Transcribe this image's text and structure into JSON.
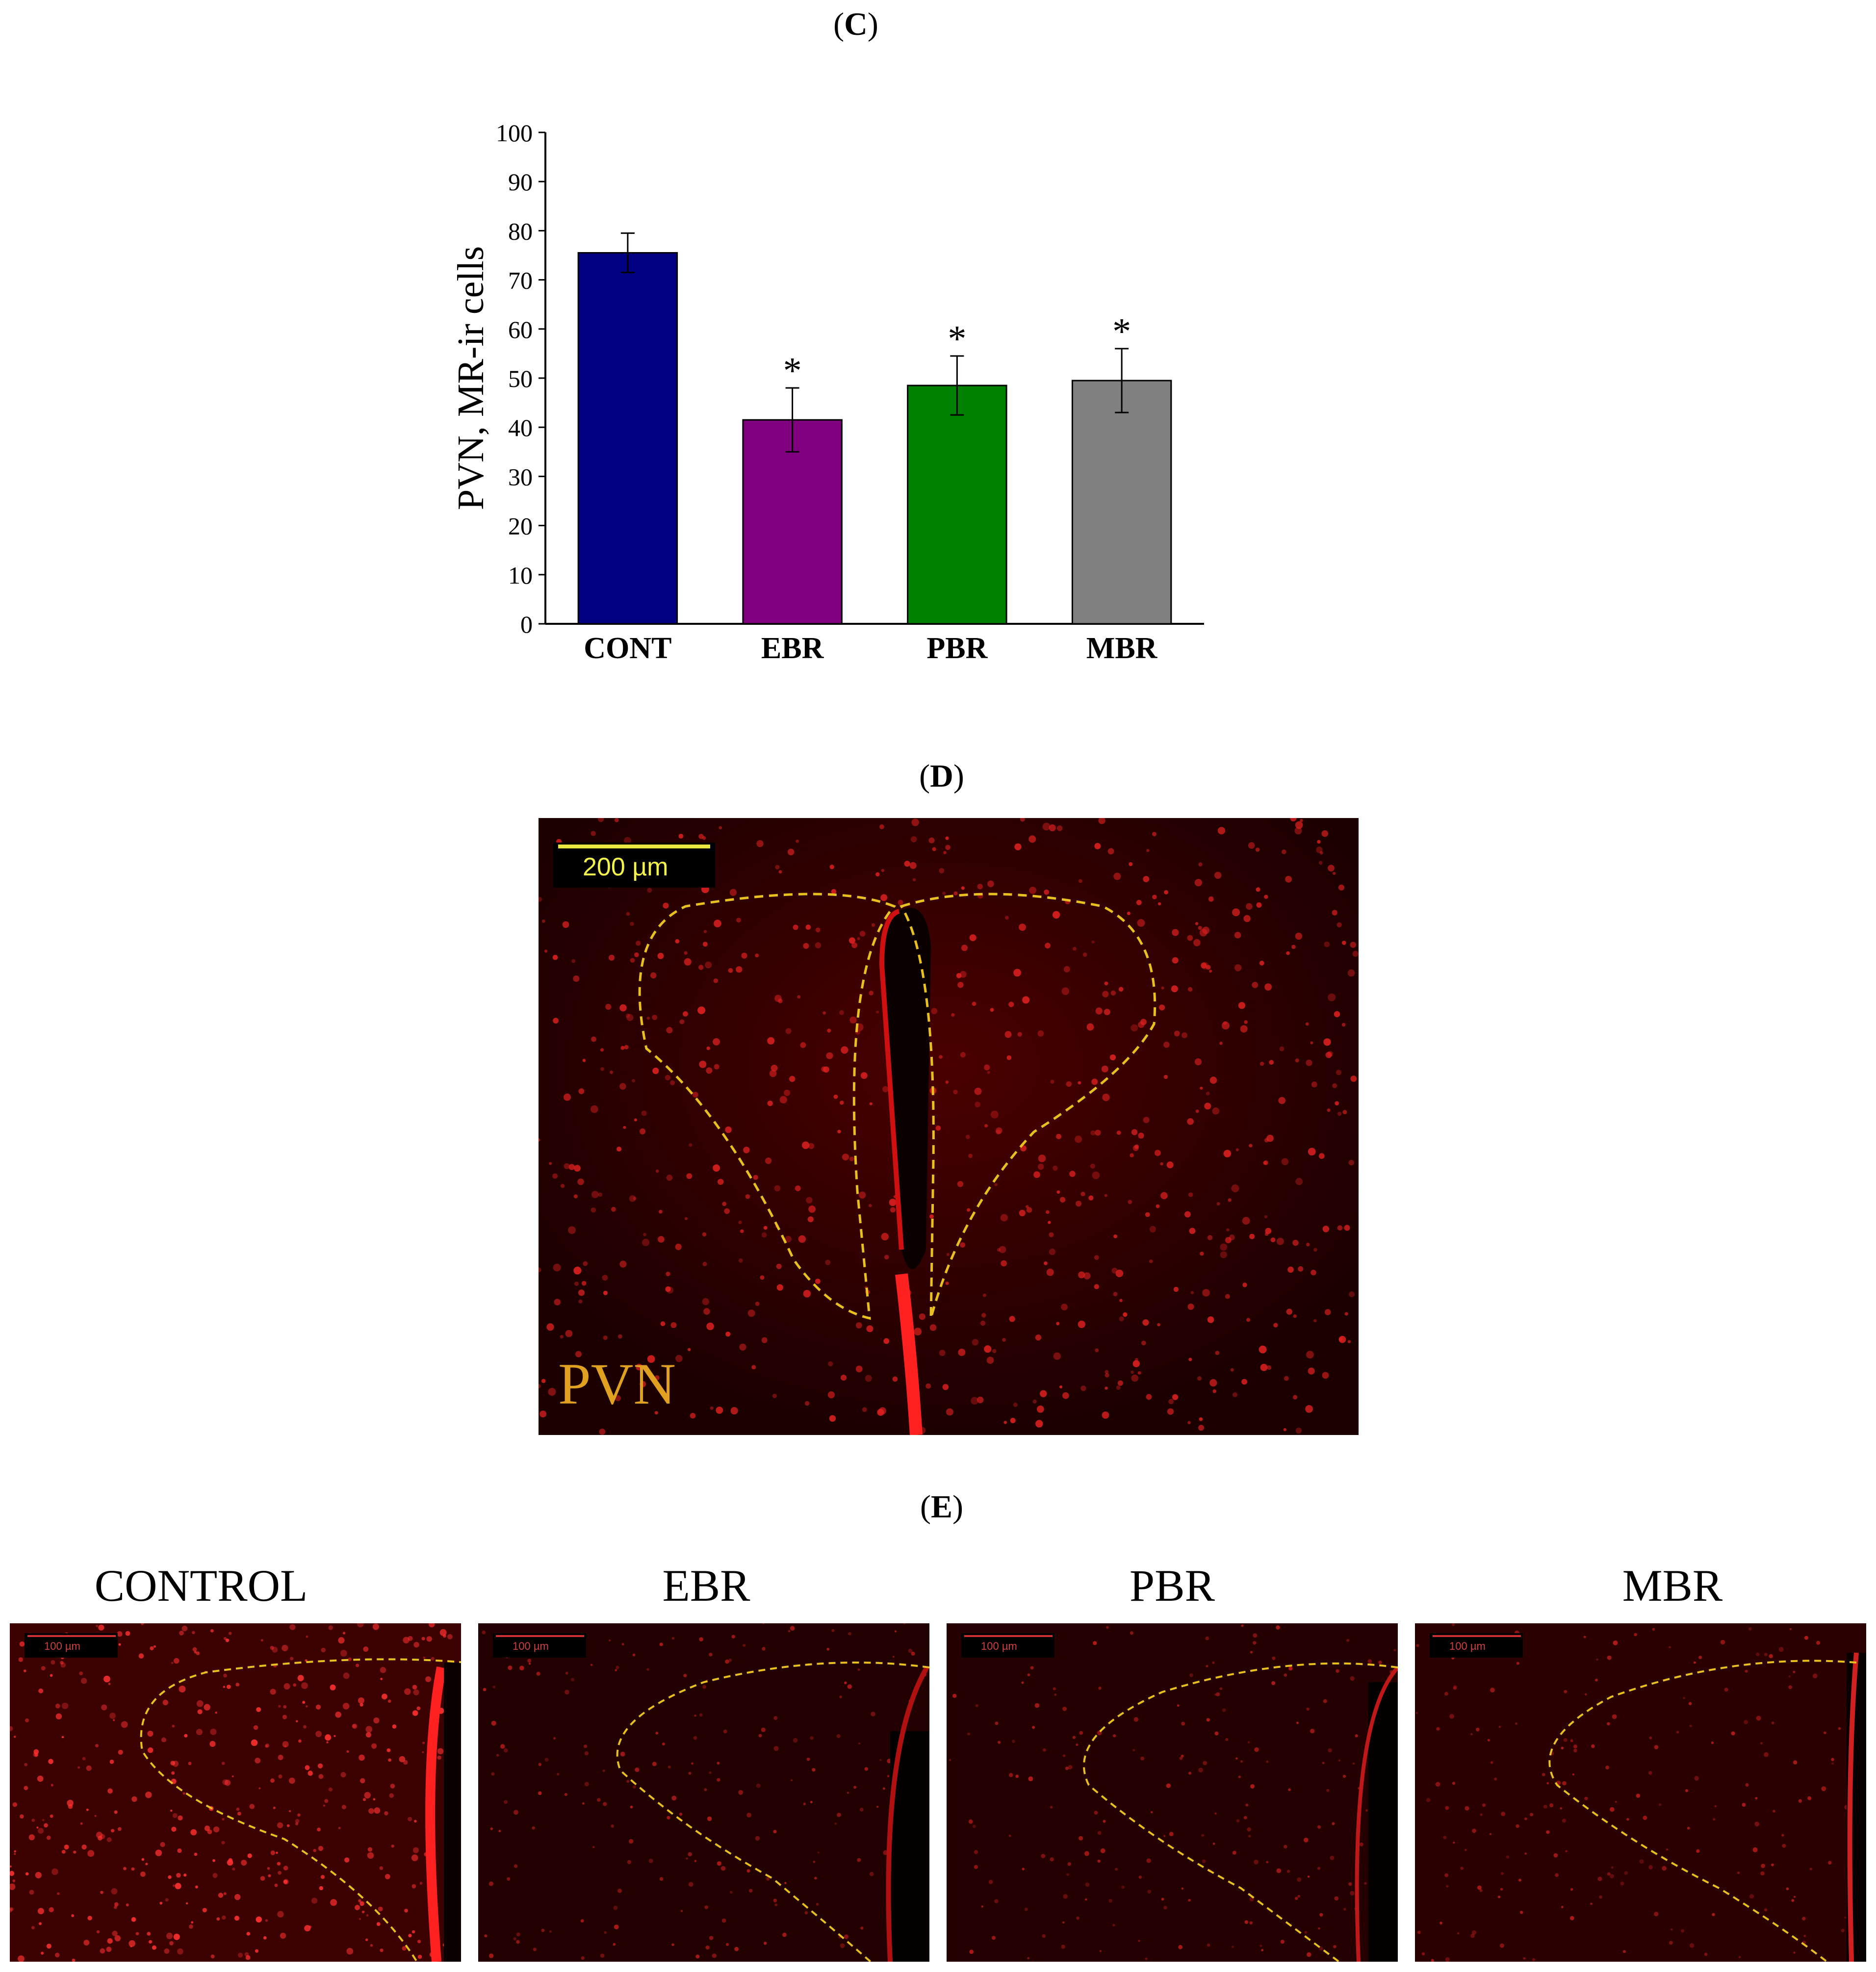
{
  "panels": {
    "c_label": "C",
    "d_label": "D",
    "e_label": "E"
  },
  "chart_data": {
    "type": "bar",
    "ylabel": "PVN, MR-ir cells",
    "ylim": [
      0,
      100
    ],
    "yticks": [
      0,
      10,
      20,
      30,
      40,
      50,
      60,
      70,
      80,
      90,
      100
    ],
    "categories": [
      "CONT",
      "EBR",
      "PBR",
      "MBR"
    ],
    "values": [
      75.5,
      41.5,
      48.5,
      49.5
    ],
    "errors": [
      4,
      6.5,
      6,
      6.5
    ],
    "significance": [
      "",
      "*",
      "*",
      "*"
    ],
    "colors": [
      "#000080",
      "#800080",
      "#008000",
      "#808080"
    ]
  },
  "image_d": {
    "scale_label": "200 µm",
    "region_label": "PVN"
  },
  "image_e": {
    "groups": [
      {
        "title": "CONTROL",
        "scale": "100 µm"
      },
      {
        "title": "EBR",
        "scale": "100 µm"
      },
      {
        "title": "PBR",
        "scale": "100 µm"
      },
      {
        "title": "MBR",
        "scale": "100 µm"
      }
    ]
  }
}
